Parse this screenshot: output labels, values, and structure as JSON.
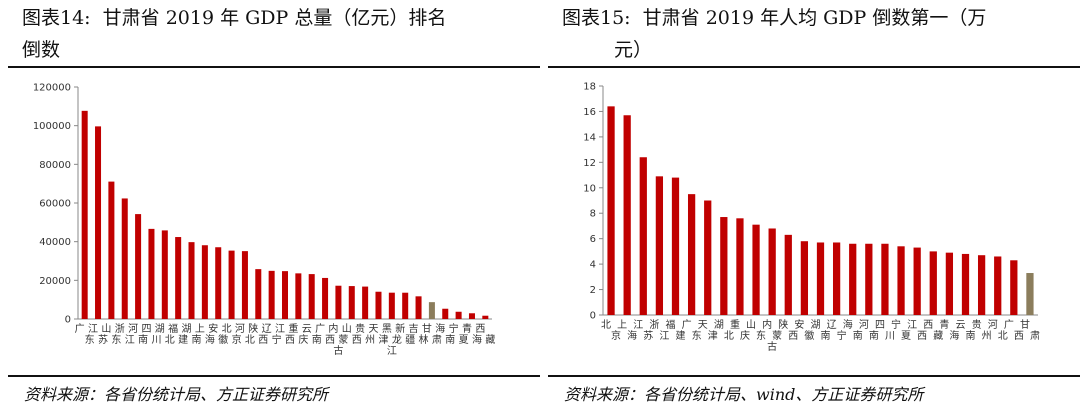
{
  "panels": [
    {
      "title": "图表14:  甘肃省 2019 年 GDP 总量（亿元）排名",
      "title_line1": "图表14:  甘肃省 2019 年 GDP 总量（亿元）排名",
      "title_line2": "倒数",
      "source": "资料来源：各省份统计局、方正证券研究所"
    },
    {
      "title": "图表15:  甘肃省 2019 年人均 GDP 倒数第一（万元）",
      "title_line1": "图表15:  甘肃省 2019 年人均 GDP 倒数第一（万",
      "title_line2": "元）",
      "source": "资料来源：各省份统计局、wind、方正证券研究所"
    }
  ],
  "colors": {
    "bar": "#C00000",
    "highlight": "#8B7D5C",
    "axis": "#888888"
  },
  "chart_data": [
    {
      "type": "bar",
      "title": "",
      "xlabel": "",
      "ylabel": "",
      "ylim": [
        0,
        120000
      ],
      "yticks": [
        "0",
        "20000",
        "40000",
        "60000",
        "80000",
        "100000",
        "120000"
      ],
      "grid": false,
      "highlight_category": "甘肃",
      "categories": [
        "广东",
        "江苏",
        "山东",
        "浙江",
        "河南",
        "四川",
        "湖北",
        "福建",
        "湖南",
        "上海",
        "安徽",
        "北京",
        "河北",
        "陕西",
        "辽宁",
        "江西",
        "重庆",
        "云南",
        "广西",
        "内蒙古",
        "山西",
        "贵州",
        "天津",
        "黑龙江",
        "新疆",
        "吉林",
        "甘肃",
        "海南",
        "宁夏",
        "青海",
        "西藏"
      ],
      "values": [
        107671,
        99632,
        71068,
        62352,
        54259,
        46616,
        45828,
        42395,
        39752,
        38155,
        37114,
        35371,
        35105,
        25793,
        24909,
        24758,
        23606,
        23224,
        21237,
        17213,
        17027,
        16769,
        14104,
        13613,
        13597,
        11727,
        8718,
        5309,
        3748,
        2966,
        1698
      ]
    },
    {
      "type": "bar",
      "title": "",
      "xlabel": "",
      "ylabel": "",
      "ylim": [
        0,
        18
      ],
      "yticks": [
        "0",
        "2",
        "4",
        "6",
        "8",
        "10",
        "12",
        "14",
        "16",
        "18"
      ],
      "grid": false,
      "highlight_category": "甘肃",
      "categories": [
        "北京",
        "上海",
        "江苏",
        "浙江",
        "福建",
        "广东",
        "天津",
        "湖北",
        "重庆",
        "山东",
        "内蒙古",
        "陕西",
        "安徽",
        "湖南",
        "辽宁",
        "海南",
        "河南",
        "四川",
        "宁夏",
        "江西",
        "西藏",
        "青海",
        "云南",
        "贵州",
        "河北",
        "广西",
        "甘肃"
      ],
      "values": [
        16.4,
        15.7,
        12.4,
        10.9,
        10.8,
        9.5,
        9.0,
        7.7,
        7.6,
        7.1,
        6.8,
        6.3,
        5.8,
        5.7,
        5.7,
        5.6,
        5.6,
        5.6,
        5.4,
        5.3,
        5.0,
        4.9,
        4.8,
        4.7,
        4.6,
        4.3,
        3.3
      ]
    }
  ]
}
